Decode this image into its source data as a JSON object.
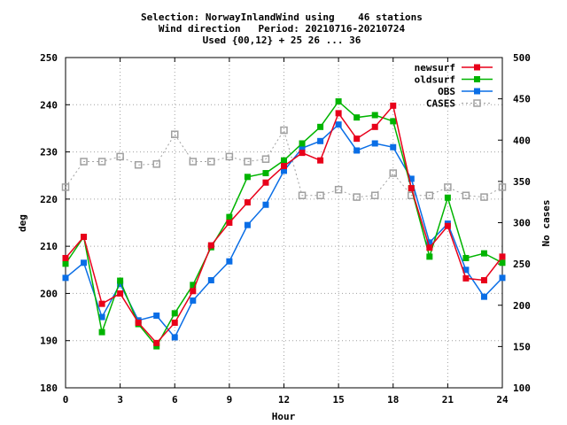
{
  "chart_data": {
    "type": "line",
    "title_lines": [
      "Selection: NorwayInlandWind using    46 stations",
      "Wind direction   Period: 20210716-20210724",
      "Used {00,12} + 25 26 ... 36"
    ],
    "xlabel": "Hour",
    "ylabel": "deg",
    "y2label": "No cases",
    "xlim": [
      0,
      24
    ],
    "ylim": [
      180,
      250
    ],
    "y2lim": [
      100,
      500
    ],
    "xticks": [
      0,
      3,
      6,
      9,
      12,
      15,
      18,
      21,
      24
    ],
    "yticks": [
      180,
      190,
      200,
      210,
      220,
      230,
      240,
      250
    ],
    "y2ticks": [
      100,
      150,
      200,
      250,
      300,
      350,
      400,
      450,
      500
    ],
    "grid": true,
    "legend_position": "top-right",
    "x": [
      0,
      1,
      2,
      3,
      4,
      5,
      6,
      7,
      8,
      9,
      10,
      11,
      12,
      13,
      14,
      15,
      16,
      17,
      18,
      19,
      20,
      21,
      22,
      23,
      24
    ],
    "series": [
      {
        "name": "newsurf",
        "axis": "y",
        "color": "#e8001a",
        "marker": "square",
        "dashed": false,
        "values": [
          207.5,
          212,
          197.8,
          200,
          193.8,
          189.5,
          193.8,
          200.5,
          210.2,
          215,
          219.3,
          223.5,
          227,
          229.8,
          228.2,
          238.2,
          232.8,
          235.3,
          239.8,
          222.3,
          209.7,
          214.3,
          203.2,
          202.8,
          207.8
        ]
      },
      {
        "name": "oldsurf",
        "axis": "y",
        "color": "#00b400",
        "marker": "square",
        "dashed": false,
        "values": [
          206.3,
          212,
          191.8,
          202.7,
          193.5,
          188.8,
          195.8,
          201.8,
          209.8,
          216.2,
          224.7,
          225.5,
          228.2,
          231.8,
          235.3,
          240.7,
          237.3,
          237.8,
          236.5,
          222.3,
          207.8,
          220.3,
          207.5,
          208.5,
          206.5
        ]
      },
      {
        "name": "OBS",
        "axis": "y",
        "color": "#0a6ee6",
        "marker": "square",
        "dashed": false,
        "values": [
          203.3,
          206.5,
          195,
          202,
          194.3,
          195.3,
          190.7,
          198.5,
          202.8,
          206.8,
          214.5,
          218.8,
          226,
          230.8,
          232.3,
          235.8,
          230.3,
          231.8,
          231,
          224.3,
          210.8,
          214.8,
          205,
          199.3,
          203.3
        ]
      },
      {
        "name": "CASES",
        "axis": "y2",
        "color": "#a0a0a0",
        "marker": "open-square",
        "dashed": true,
        "values": [
          343,
          374,
          374,
          380,
          370,
          371,
          407,
          374,
          374,
          380,
          374,
          377,
          412,
          333,
          333,
          340,
          331,
          333,
          360,
          333,
          333,
          343,
          333,
          331,
          343
        ]
      }
    ]
  }
}
